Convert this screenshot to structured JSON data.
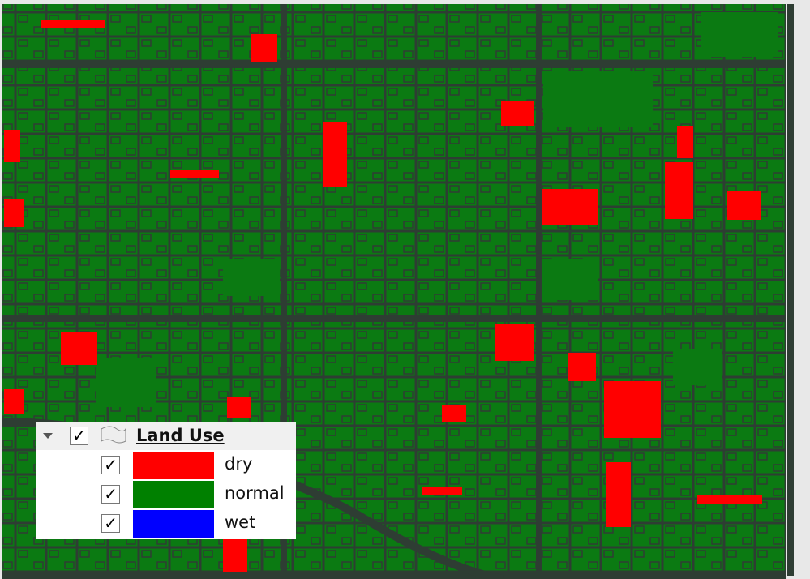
{
  "legend": {
    "title": "Land Use",
    "items": [
      {
        "label": "dry",
        "color": "#ff0000"
      },
      {
        "label": "normal",
        "color": "#008000"
      },
      {
        "label": "wet",
        "color": "#0000ff"
      }
    ]
  }
}
